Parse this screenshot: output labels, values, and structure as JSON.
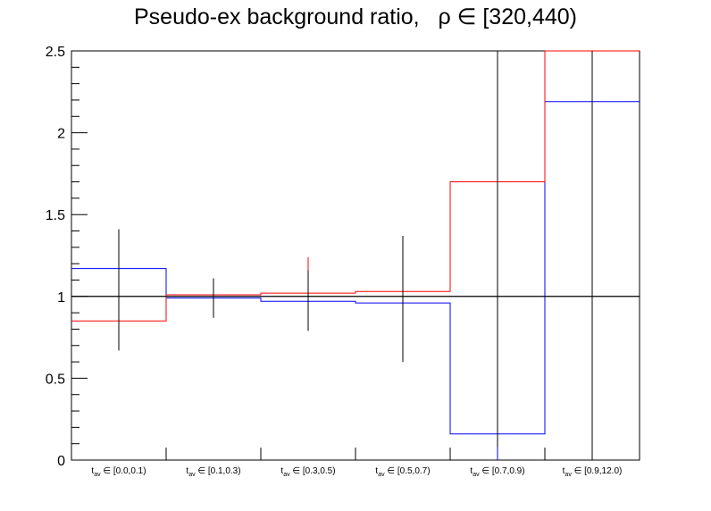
{
  "chart_data": {
    "type": "step-histogram",
    "title": "Pseudo-ex background ratio,   ρ ∈ [320,440)",
    "categories": [
      {
        "base": "t",
        "sub": "av",
        "rest": " ∈ [0.0,0.1)"
      },
      {
        "base": "t",
        "sub": "av",
        "rest": " ∈ [0.1,0.3)"
      },
      {
        "base": "t",
        "sub": "av",
        "rest": " ∈ [0.3,0.5)"
      },
      {
        "base": "t",
        "sub": "av",
        "rest": " ∈ [0.5,0.7)"
      },
      {
        "base": "t",
        "sub": "av",
        "rest": " ∈ [0.7,0.9)"
      },
      {
        "base": "t",
        "sub": "av",
        "rest": " ∈ [0.9,12.0)"
      }
    ],
    "ylim": [
      0,
      2.5
    ],
    "y_ticks": [
      0,
      0.5,
      1,
      1.5,
      2,
      2.5
    ],
    "y_tick_labels": [
      "0",
      "0.5",
      "1",
      "1.5",
      "2",
      "2.5"
    ],
    "reference_line": 1,
    "series": [
      {
        "color": "#0000ff",
        "values": [
          1.17,
          0.99,
          0.97,
          0.96,
          0.16,
          2.19
        ],
        "err_low": [
          0.67,
          0.87,
          0.79,
          0.6,
          0.0,
          0.0
        ],
        "err_high": [
          1.41,
          1.11,
          1.16,
          1.36,
          2.5,
          2.5
        ]
      },
      {
        "color": "#ff0000",
        "values": [
          0.85,
          1.01,
          1.02,
          1.03,
          1.7,
          2.5
        ],
        "err_low": [
          0.67,
          0.87,
          0.79,
          0.6,
          0.08,
          0.0
        ],
        "err_high": [
          1.41,
          1.11,
          1.24,
          1.37,
          2.5,
          2.5
        ]
      },
      {
        "color": "#000000",
        "values": [
          1,
          1,
          1,
          1,
          1,
          1
        ],
        "err_low": [
          0.67,
          0.87,
          0.79,
          0.6,
          0.08,
          0.0
        ],
        "err_high": [
          1.41,
          1.11,
          1.16,
          1.37,
          2.5,
          2.5
        ]
      }
    ],
    "grid": false
  }
}
